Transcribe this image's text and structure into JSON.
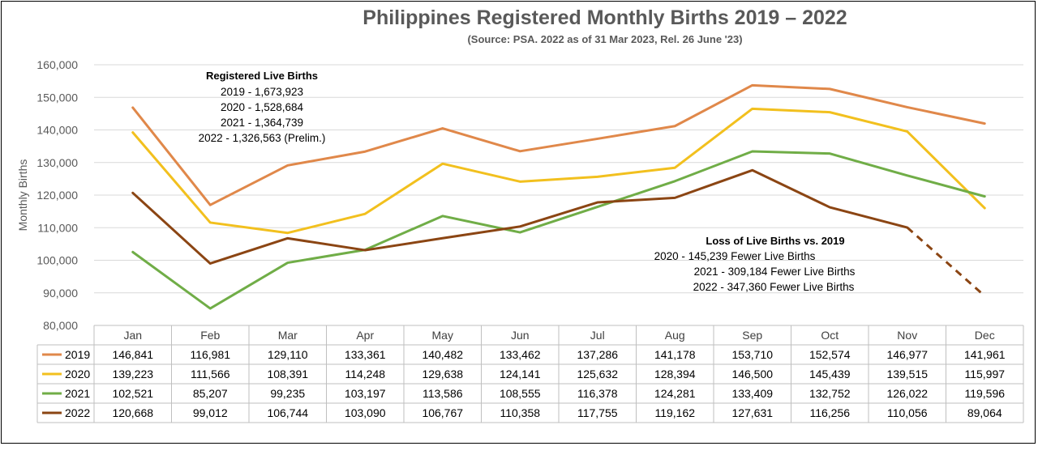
{
  "chart_data": {
    "type": "line",
    "title": "Philippines Registered Monthly Births 2019 – 2022",
    "subtitle": "(Source: PSA.  2022 as of 31 Mar 2023,  Rel. 26 June '23)",
    "ylabel": "Monthly Births",
    "ylim": [
      80000,
      160000
    ],
    "yticks": [
      "80,000",
      "90,000",
      "100,000",
      "110,000",
      "120,000",
      "130,000",
      "140,000",
      "150,000",
      "160,000"
    ],
    "grid": true,
    "categories": [
      "Jan",
      "Feb",
      "Mar",
      "Apr",
      "May",
      "Jun",
      "Jul",
      "Aug",
      "Sep",
      "Oct",
      "Nov",
      "Dec"
    ],
    "series": [
      {
        "name": "2019",
        "color": "#E0884A",
        "values": [
          146841,
          116981,
          129110,
          133361,
          140482,
          133462,
          137286,
          141178,
          153710,
          152574,
          146977,
          141961
        ],
        "labels": [
          "146,841",
          "116,981",
          "129,110",
          "133,361",
          "140,482",
          "133,462",
          "137,286",
          "141,178",
          "153,710",
          "152,574",
          "146,977",
          "141,961"
        ]
      },
      {
        "name": "2020",
        "color": "#F2C01E",
        "values": [
          139223,
          111566,
          108391,
          114248,
          129638,
          124141,
          125632,
          128394,
          146500,
          145439,
          139515,
          115997
        ],
        "labels": [
          "139,223",
          "111,566",
          "108,391",
          "114,248",
          "129,638",
          "124,141",
          "125,632",
          "128,394",
          "146,500",
          "145,439",
          "139,515",
          "115,997"
        ]
      },
      {
        "name": "2021",
        "color": "#70AD47",
        "values": [
          102521,
          85207,
          99235,
          103197,
          113586,
          108555,
          116378,
          124281,
          133409,
          132752,
          126022,
          119596
        ],
        "labels": [
          "102,521",
          "85,207",
          "99,235",
          "103,197",
          "113,586",
          "108,555",
          "116,378",
          "124,281",
          "133,409",
          "132,752",
          "126,022",
          "119,596"
        ]
      },
      {
        "name": "2022",
        "color": "#8B4513",
        "dashed_from_index": 10,
        "values": [
          120668,
          99012,
          106744,
          103090,
          106767,
          110358,
          117755,
          119162,
          127631,
          116256,
          110056,
          89064
        ],
        "labels": [
          "120,668",
          "99,012",
          "106,744",
          "103,090",
          "106,767",
          "110,358",
          "117,755",
          "119,162",
          "127,631",
          "116,256",
          "110,056",
          "89,064"
        ]
      }
    ],
    "annotations": {
      "registered": {
        "heading": "Registered Live Births",
        "lines": [
          "2019 - 1,673,923",
          "2020 - 1,528,684",
          "2021 - 1,364,739",
          "2022 - 1,326,563 (Prelim.)"
        ]
      },
      "loss": {
        "heading": "Loss of Live Births vs. 2019",
        "lines": [
          "2020 - 145,239 Fewer Live Births",
          "2021 - 309,184 Fewer Live Births",
          "2022 - 347,360 Fewer Live Births"
        ]
      }
    }
  }
}
